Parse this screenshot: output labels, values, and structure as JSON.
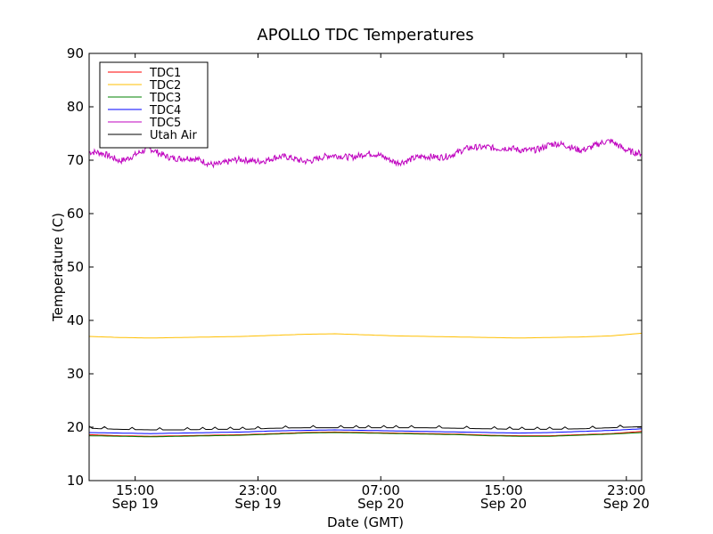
{
  "chart_data": {
    "type": "line",
    "title": "APOLLO TDC Temperatures",
    "xlabel": "Date (GMT)",
    "ylabel": "Temperature (C)",
    "ylim": [
      10,
      90
    ],
    "xlim_hours": [
      0,
      36
    ],
    "yticks": [
      10,
      20,
      30,
      40,
      50,
      60,
      70,
      80,
      90
    ],
    "xticks": [
      {
        "hour": 3,
        "time": "15:00",
        "date": "Sep 19"
      },
      {
        "hour": 11,
        "time": "23:00",
        "date": "Sep 19"
      },
      {
        "hour": 19,
        "time": "07:00",
        "date": "Sep 20"
      },
      {
        "hour": 27,
        "time": "15:00",
        "date": "Sep 20"
      },
      {
        "hour": 35,
        "time": "23:00",
        "date": "Sep 20"
      }
    ],
    "legend_position": "top-left",
    "grid": false,
    "x": [
      0,
      2,
      4,
      6,
      8,
      10,
      12,
      14,
      16,
      18,
      20,
      22,
      24,
      26,
      28,
      30,
      32,
      34,
      36
    ],
    "series": [
      {
        "name": "TDC1",
        "color": "#ff0000",
        "values": [
          18.6,
          18.4,
          18.3,
          18.4,
          18.5,
          18.6,
          18.8,
          19.0,
          19.1,
          19.0,
          18.9,
          18.8,
          18.7,
          18.5,
          18.4,
          18.4,
          18.6,
          18.8,
          19.2
        ]
      },
      {
        "name": "TDC2",
        "color": "#ffbf00",
        "values": [
          37.0,
          36.8,
          36.7,
          36.8,
          36.9,
          37.0,
          37.2,
          37.4,
          37.5,
          37.3,
          37.1,
          37.0,
          36.9,
          36.8,
          36.7,
          36.8,
          36.9,
          37.1,
          37.6
        ]
      },
      {
        "name": "TDC3",
        "color": "#008000",
        "values": [
          18.4,
          18.3,
          18.2,
          18.3,
          18.4,
          18.5,
          18.7,
          18.9,
          19.0,
          18.9,
          18.8,
          18.7,
          18.6,
          18.4,
          18.3,
          18.3,
          18.5,
          18.7,
          19.0
        ]
      },
      {
        "name": "TDC4",
        "color": "#0000ff",
        "values": [
          19.0,
          18.9,
          18.8,
          18.9,
          19.0,
          19.1,
          19.3,
          19.4,
          19.5,
          19.4,
          19.3,
          19.2,
          19.1,
          19.0,
          18.9,
          19.0,
          19.2,
          19.4,
          19.7
        ]
      },
      {
        "name": "TDC5",
        "color": "#bf00bf",
        "values": [
          71.5,
          70.2,
          71.8,
          70.3,
          69.5,
          69.8,
          70.4,
          70.1,
          70.6,
          71.2,
          69.9,
          70.4,
          71.4,
          72.8,
          71.6,
          72.9,
          72.2,
          73.3,
          71.2
        ]
      },
      {
        "name": "Utah Air",
        "color": "#000000",
        "values": [
          19.8,
          19.6,
          19.5,
          19.5,
          19.6,
          19.6,
          19.8,
          19.9,
          19.9,
          19.9,
          19.9,
          19.9,
          19.8,
          19.7,
          19.6,
          19.6,
          19.7,
          19.9,
          20.1
        ]
      }
    ]
  }
}
